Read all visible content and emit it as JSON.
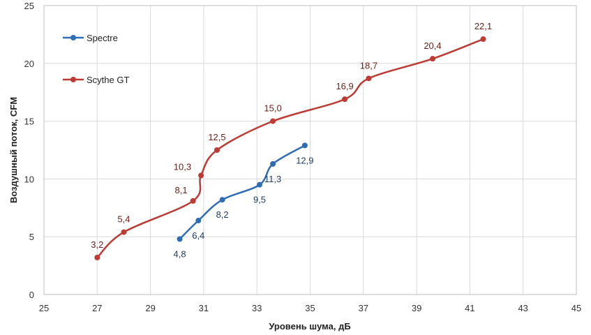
{
  "chart_data": {
    "type": "line",
    "xlabel": "Уровень шума, дБ",
    "ylabel": "Воздушный поток, CFM",
    "xlim": [
      25,
      45
    ],
    "ylim": [
      0,
      25
    ],
    "xticks": [
      25,
      27,
      29,
      31,
      33,
      35,
      37,
      39,
      41,
      43,
      45
    ],
    "yticks": [
      0,
      5,
      10,
      15,
      20,
      25
    ],
    "grid": true,
    "legend_position": "top-left",
    "series": [
      {
        "name": "Spectre",
        "color": "#2E6DB4",
        "points": [
          {
            "x": 30.1,
            "y": 4.8,
            "label": "4,8",
            "label_pos": "below"
          },
          {
            "x": 30.8,
            "y": 6.4,
            "label": "6,4",
            "label_pos": "below"
          },
          {
            "x": 31.7,
            "y": 8.2,
            "label": "8,2",
            "label_pos": "below"
          },
          {
            "x": 33.1,
            "y": 9.5,
            "label": "9,5",
            "label_pos": "below"
          },
          {
            "x": 33.6,
            "y": 11.3,
            "label": "11,3",
            "label_pos": "below"
          },
          {
            "x": 34.8,
            "y": 12.9,
            "label": "12,9",
            "label_pos": "below"
          }
        ]
      },
      {
        "name": "Scythe GT",
        "color": "#BE3A34",
        "points": [
          {
            "x": 27.0,
            "y": 3.2,
            "label": "3,2",
            "label_pos": "above"
          },
          {
            "x": 28.0,
            "y": 5.4,
            "label": "5,4",
            "label_pos": "above"
          },
          {
            "x": 30.6,
            "y": 8.1,
            "label": "8,1",
            "label_pos": "above-left"
          },
          {
            "x": 30.9,
            "y": 10.3,
            "label": "10,3",
            "label_pos": "left"
          },
          {
            "x": 31.5,
            "y": 12.5,
            "label": "12,5",
            "label_pos": "above"
          },
          {
            "x": 33.6,
            "y": 15.0,
            "label": "15,0",
            "label_pos": "above"
          },
          {
            "x": 36.3,
            "y": 16.9,
            "label": "16,9",
            "label_pos": "above"
          },
          {
            "x": 37.2,
            "y": 18.7,
            "label": "18,7",
            "label_pos": "above"
          },
          {
            "x": 39.6,
            "y": 20.4,
            "label": "20,4",
            "label_pos": "above"
          },
          {
            "x": 41.5,
            "y": 22.1,
            "label": "22,1",
            "label_pos": "above"
          }
        ]
      }
    ]
  }
}
